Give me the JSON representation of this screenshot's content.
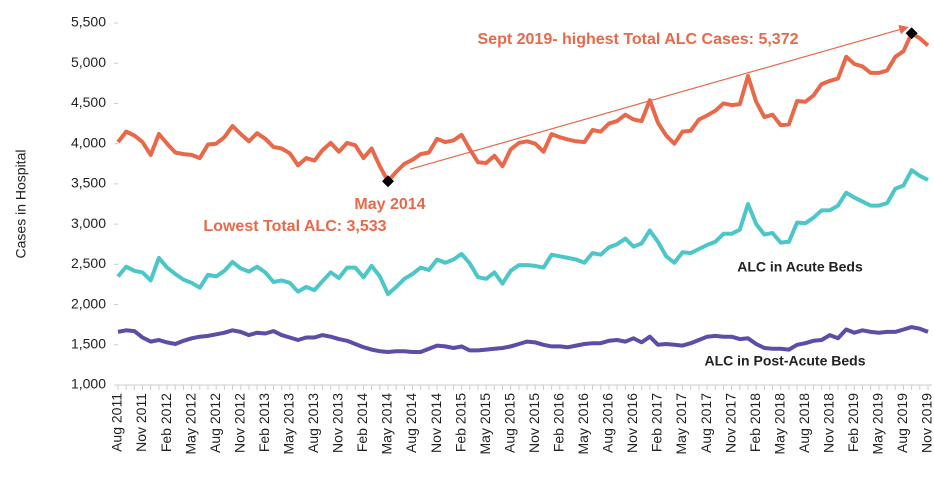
{
  "chart_data": {
    "type": "line",
    "y_label": "Cases in Hospital",
    "annotations": [
      "Sept 2019- highest Total ALC Cases: 5,372",
      "May 2014",
      "Lowest Total ALC: 3,533"
    ],
    "categories": [
      "Aug 2011",
      null,
      null,
      "Nov 2011",
      null,
      null,
      "Feb 2012",
      null,
      null,
      "May 2012",
      null,
      null,
      "Aug 2012",
      null,
      null,
      "Nov 2012",
      null,
      null,
      "Feb 2013",
      null,
      null,
      "May 2013",
      null,
      null,
      "Aug 2013",
      null,
      null,
      "Nov 2013",
      null,
      null,
      "Feb 2014",
      null,
      null,
      "May 2014",
      null,
      null,
      "Aug 2014",
      null,
      null,
      "Nov 2014",
      null,
      null,
      "Feb 2015",
      null,
      null,
      "May 2015",
      null,
      null,
      "Aug 2015",
      null,
      null,
      "Nov 2015",
      null,
      null,
      "Feb 2016",
      null,
      null,
      "May 2016",
      null,
      null,
      "Aug 2016",
      null,
      null,
      "Nov 2016",
      null,
      null,
      "Feb 2017",
      null,
      null,
      "May 2017",
      null,
      null,
      "Aug 2017",
      null,
      null,
      "Nov 2017",
      null,
      null,
      "Feb 2018",
      null,
      null,
      "May 2018",
      null,
      null,
      "Aug 2018",
      null,
      null,
      "Nov 2018",
      null,
      null,
      "Feb 2019",
      null,
      null,
      "May 2019",
      null,
      null,
      "Aug 2019",
      null,
      null,
      "Nov 2019"
    ],
    "series": [
      {
        "color": "#e8694a",
        "values": [
          4020,
          4150,
          4100,
          4020,
          3860,
          4120,
          4000,
          3890,
          3870,
          3860,
          3820,
          3990,
          4000,
          4080,
          4220,
          4120,
          4030,
          4130,
          4060,
          3960,
          3940,
          3880,
          3730,
          3820,
          3790,
          3920,
          4010,
          3900,
          4010,
          3980,
          3820,
          3940,
          3720,
          3533,
          3650,
          3750,
          3800,
          3870,
          3890,
          4060,
          4020,
          4040,
          4110,
          3930,
          3770,
          3760,
          3850,
          3720,
          3930,
          4010,
          4030,
          4000,
          3900,
          4120,
          4080,
          4050,
          4030,
          4020,
          4170,
          4150,
          4250,
          4280,
          4360,
          4300,
          4280,
          4540,
          4260,
          4100,
          4000,
          4150,
          4160,
          4300,
          4350,
          4410,
          4500,
          4480,
          4490,
          4840,
          4520,
          4330,
          4360,
          4230,
          4240,
          4530,
          4520,
          4600,
          4740,
          4780,
          4810,
          5080,
          4990,
          4960,
          4880,
          4880,
          4910,
          5080,
          5150,
          5372,
          5310,
          5220
        ]
      },
      {
        "name": "ALC in Acute Beds",
        "color": "#4cc6c8",
        "values": [
          2350,
          2470,
          2420,
          2400,
          2300,
          2580,
          2460,
          2380,
          2310,
          2270,
          2210,
          2370,
          2350,
          2420,
          2530,
          2450,
          2410,
          2470,
          2400,
          2280,
          2300,
          2270,
          2160,
          2220,
          2180,
          2290,
          2400,
          2330,
          2460,
          2460,
          2340,
          2480,
          2350,
          2130,
          2220,
          2320,
          2380,
          2460,
          2430,
          2560,
          2520,
          2560,
          2630,
          2510,
          2340,
          2320,
          2400,
          2260,
          2420,
          2490,
          2490,
          2480,
          2460,
          2620,
          2600,
          2580,
          2560,
          2520,
          2640,
          2620,
          2710,
          2750,
          2820,
          2720,
          2760,
          2920,
          2780,
          2600,
          2520,
          2650,
          2640,
          2690,
          2740,
          2780,
          2880,
          2880,
          2930,
          3250,
          3000,
          2870,
          2890,
          2770,
          2780,
          3020,
          3010,
          3080,
          3170,
          3170,
          3230,
          3390,
          3330,
          3280,
          3230,
          3230,
          3260,
          3440,
          3480,
          3670,
          3600,
          3550
        ]
      },
      {
        "name": "ALC in Post-Acute Beds",
        "color": "#5b4ea6",
        "values": [
          1660,
          1680,
          1670,
          1590,
          1540,
          1560,
          1530,
          1510,
          1550,
          1580,
          1600,
          1610,
          1630,
          1650,
          1680,
          1660,
          1620,
          1650,
          1640,
          1670,
          1620,
          1590,
          1560,
          1590,
          1590,
          1620,
          1600,
          1570,
          1550,
          1510,
          1470,
          1440,
          1420,
          1410,
          1420,
          1420,
          1410,
          1410,
          1450,
          1490,
          1480,
          1460,
          1480,
          1430,
          1430,
          1440,
          1450,
          1460,
          1480,
          1510,
          1540,
          1530,
          1500,
          1480,
          1480,
          1470,
          1490,
          1510,
          1520,
          1520,
          1550,
          1560,
          1540,
          1580,
          1530,
          1600,
          1500,
          1510,
          1500,
          1490,
          1520,
          1560,
          1600,
          1610,
          1600,
          1600,
          1570,
          1580,
          1510,
          1460,
          1450,
          1450,
          1440,
          1500,
          1520,
          1550,
          1560,
          1620,
          1580,
          1690,
          1650,
          1680,
          1660,
          1650,
          1660,
          1660,
          1690,
          1720,
          1700,
          1660
        ]
      }
    ],
    "ylim": [
      1000,
      5500
    ],
    "yticks": [
      {
        "value": 1000,
        "label": "1,000"
      },
      {
        "value": 1500,
        "label": "1,500"
      },
      {
        "value": 2000,
        "label": "2,000"
      },
      {
        "value": 2500,
        "label": "2,500"
      },
      {
        "value": 3000,
        "label": "3,000"
      },
      {
        "value": 3500,
        "label": "3,500"
      },
      {
        "value": 4000,
        "label": "4,000"
      },
      {
        "value": 4500,
        "label": "4,500"
      },
      {
        "value": 5000,
        "label": "5,000"
      },
      {
        "value": 5500,
        "label": "5,500"
      }
    ],
    "grid": false
  }
}
